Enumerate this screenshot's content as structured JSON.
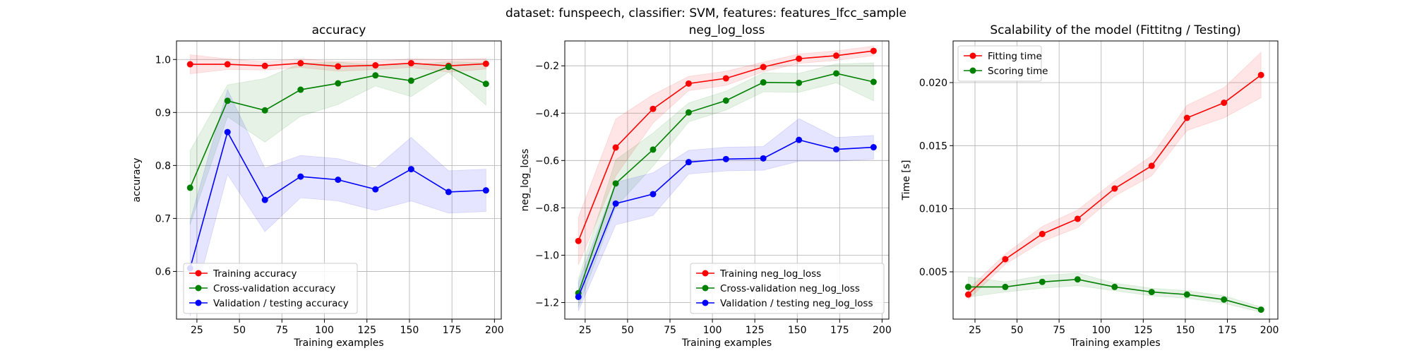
{
  "suptitle": "dataset: funspeech, classifier: SVM, features: features_lfcc_sample",
  "colors": {
    "red": "#ff0000",
    "green": "#008000",
    "blue": "#0000ff"
  },
  "chart_data": [
    {
      "type": "line",
      "title": "accuracy",
      "xlabel": "Training examples",
      "ylabel": "accuracy",
      "xlim": [
        13,
        204
      ],
      "ylim": [
        0.51,
        1.035
      ],
      "xticks": [
        25,
        50,
        75,
        100,
        125,
        150,
        175,
        200
      ],
      "yticks": [
        0.6,
        0.7,
        0.8,
        0.9,
        1.0
      ],
      "ytick_labels": [
        "0.6",
        "0.7",
        "0.8",
        "0.9",
        "1.0"
      ],
      "grid": true,
      "legend": "lower-left",
      "x": [
        21,
        43,
        65,
        86,
        108,
        130,
        151,
        173,
        195
      ],
      "series": [
        {
          "name": "Training accuracy",
          "color": "#ff0000",
          "values": [
            0.991,
            0.991,
            0.988,
            0.993,
            0.987,
            0.989,
            0.993,
            0.988,
            0.992
          ],
          "band": [
            0.018,
            0.01,
            0.008,
            0.008,
            0.009,
            0.008,
            0.008,
            0.012,
            0.01
          ]
        },
        {
          "name": "Cross-validation accuracy",
          "color": "#008000",
          "values": [
            0.758,
            0.922,
            0.904,
            0.943,
            0.955,
            0.97,
            0.96,
            0.986,
            0.954
          ],
          "band": [
            0.07,
            0.03,
            0.06,
            0.05,
            0.04,
            0.02,
            0.03,
            0.01,
            0.04
          ]
        },
        {
          "name": "Validation / testing accuracy",
          "color": "#0000ff",
          "values": [
            0.606,
            0.863,
            0.735,
            0.779,
            0.773,
            0.755,
            0.793,
            0.75,
            0.753
          ],
          "band": [
            0.09,
            0.08,
            0.06,
            0.04,
            0.04,
            0.04,
            0.06,
            0.04,
            0.04
          ]
        }
      ]
    },
    {
      "type": "line",
      "title": "neg_log_loss",
      "xlabel": "Training examples",
      "ylabel": "neg_log_loss",
      "xlim": [
        13,
        204
      ],
      "ylim": [
        -1.27,
        -0.095
      ],
      "xticks": [
        25,
        50,
        75,
        100,
        125,
        150,
        175,
        200
      ],
      "yticks": [
        -1.2,
        -1.0,
        -0.8,
        -0.6,
        -0.4,
        -0.2
      ],
      "ytick_labels": [
        "−1.2",
        "−1.0",
        "−0.8",
        "−0.6",
        "−0.4",
        "−0.2"
      ],
      "grid": true,
      "legend": "lower-right",
      "x": [
        21,
        43,
        65,
        86,
        108,
        130,
        151,
        173,
        195
      ],
      "series": [
        {
          "name": "Training neg_log_loss",
          "color": "#ff0000",
          "values": [
            -0.94,
            -0.545,
            -0.382,
            -0.275,
            -0.253,
            -0.205,
            -0.17,
            -0.157,
            -0.137
          ],
          "band": [
            0.1,
            0.12,
            0.06,
            0.03,
            0.03,
            0.02,
            0.02,
            0.02,
            0.02
          ]
        },
        {
          "name": "Cross-validation neg_log_loss",
          "color": "#008000",
          "values": [
            -1.16,
            -0.697,
            -0.554,
            -0.397,
            -0.347,
            -0.27,
            -0.272,
            -0.232,
            -0.268
          ],
          "band": [
            0.06,
            0.1,
            0.07,
            0.04,
            0.04,
            0.04,
            0.04,
            0.04,
            0.08
          ]
        },
        {
          "name": "Validation / testing neg_log_loss",
          "color": "#0000ff",
          "values": [
            -1.176,
            -0.782,
            -0.742,
            -0.607,
            -0.594,
            -0.591,
            -0.513,
            -0.553,
            -0.544
          ],
          "band": [
            0.06,
            0.09,
            0.09,
            0.05,
            0.05,
            0.05,
            0.09,
            0.05,
            0.05
          ]
        }
      ]
    },
    {
      "type": "line",
      "title": "Scalability of the model (Fittitng / Testing)",
      "xlabel": "Training examples",
      "ylabel": "Time [s]",
      "xlim": [
        12,
        205
      ],
      "ylim": [
        0.00125,
        0.0233
      ],
      "xticks": [
        25,
        50,
        75,
        100,
        125,
        150,
        175,
        200
      ],
      "yticks": [
        0.005,
        0.01,
        0.015,
        0.02
      ],
      "ytick_labels": [
        "0.005",
        "0.010",
        "0.015",
        "0.020"
      ],
      "grid": true,
      "legend": "upper-left",
      "x": [
        21,
        43,
        65,
        86,
        108,
        130,
        151,
        173,
        195
      ],
      "series": [
        {
          "name": "Fitting time",
          "color": "#ff0000",
          "values": [
            0.0032,
            0.006,
            0.008,
            0.0092,
            0.0116,
            0.0134,
            0.0172,
            0.0184,
            0.0206
          ],
          "band": [
            0.0004,
            0.0004,
            0.0006,
            0.0007,
            0.0006,
            0.0008,
            0.001,
            0.0012,
            0.0018
          ]
        },
        {
          "name": "Scoring time",
          "color": "#008000",
          "values": [
            0.0038,
            0.0038,
            0.0042,
            0.0044,
            0.0038,
            0.0034,
            0.0032,
            0.0028,
            0.002
          ],
          "band": [
            0.0008,
            0.0004,
            0.0005,
            0.0005,
            0.0003,
            0.0003,
            0.0003,
            0.0003,
            0.0002
          ]
        }
      ]
    }
  ]
}
